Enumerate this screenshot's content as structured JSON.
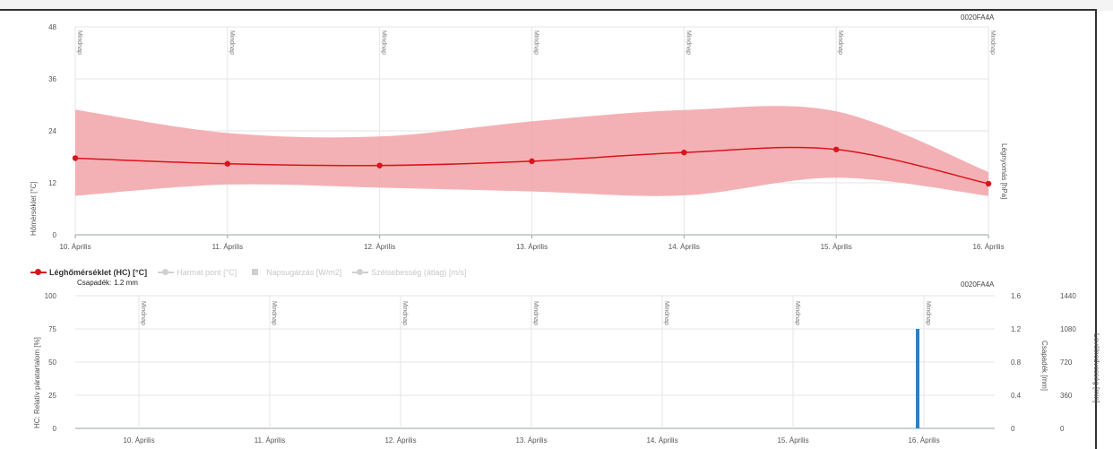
{
  "chart_data": [
    {
      "type": "line",
      "station": "0020FA4A",
      "ylabel": "Hőmérséklet [°C]",
      "right_ylabel": "Légnyomás [hPa]",
      "ylim": [
        0,
        48
      ],
      "yticks": [
        0,
        12,
        24,
        36,
        48
      ],
      "x_tick_labels": [
        "10. Április",
        "11. Április",
        "12. Április",
        "13. Április",
        "14. Április",
        "15. Április",
        "16. Április"
      ],
      "day_marker_label": "Mindnap",
      "grid": true,
      "series": [
        {
          "name": "Léghőmérséklet (HC) [°C]",
          "color": "#d9141b",
          "kind": "line",
          "values": [
            17.7,
            16.4,
            16.0,
            17.0,
            19.0,
            19.7,
            11.8
          ]
        },
        {
          "name": "range",
          "color": "#f2a3a8",
          "kind": "area",
          "lower": [
            9.0,
            11.6,
            10.9,
            10.0,
            9.1,
            13.2,
            9.0
          ],
          "upper": [
            28.9,
            23.5,
            22.7,
            26.2,
            28.8,
            28.5,
            14.5
          ]
        }
      ]
    },
    {
      "type": "bar",
      "station": "0020FA4A",
      "ylabel": "HC: Relatív páratartalom [%]",
      "right_ylabels": [
        "Csapadék [mm]",
        "Levélnedvesség [min]"
      ],
      "ylim": [
        0,
        100
      ],
      "yticks": [
        0,
        25,
        50,
        75,
        100
      ],
      "y2lim": [
        0,
        1.6
      ],
      "y2ticks": [
        0,
        0.4,
        0.8,
        1.2,
        1.6
      ],
      "y3lim": [
        0,
        1440
      ],
      "y3ticks": [
        0,
        360,
        720,
        1080,
        1440
      ],
      "x_tick_labels": [
        "10. Április",
        "11. Április",
        "12. Április",
        "13. Április",
        "14. Április",
        "15. Április",
        "16. Április"
      ],
      "day_marker_label": "Mindnap",
      "grid": true,
      "series": [
        {
          "name": "Csapadék",
          "color": "#2f7fc1",
          "kind": "bar",
          "axis": "y2",
          "x": "16. Április",
          "values": [
            1.2
          ]
        }
      ]
    }
  ],
  "legend": [
    {
      "label": "Léghőmérséklet (HC) [°C]",
      "color": "#d9141b",
      "active": true,
      "symbol": "line-dot"
    },
    {
      "label": "Harmat pont [°C]",
      "color": "#c8c8c8",
      "active": false,
      "symbol": "line-dot"
    },
    {
      "label": "Napsugárzás [W/m2]",
      "color": "#c8c8c8",
      "active": false,
      "symbol": "square"
    },
    {
      "label": "Szélsebesség (átlag) [m/s]",
      "color": "#c8c8c8",
      "active": false,
      "symbol": "line-dot"
    }
  ],
  "precipitation": {
    "label": "Csapadék:",
    "value": "1.2 mm"
  }
}
